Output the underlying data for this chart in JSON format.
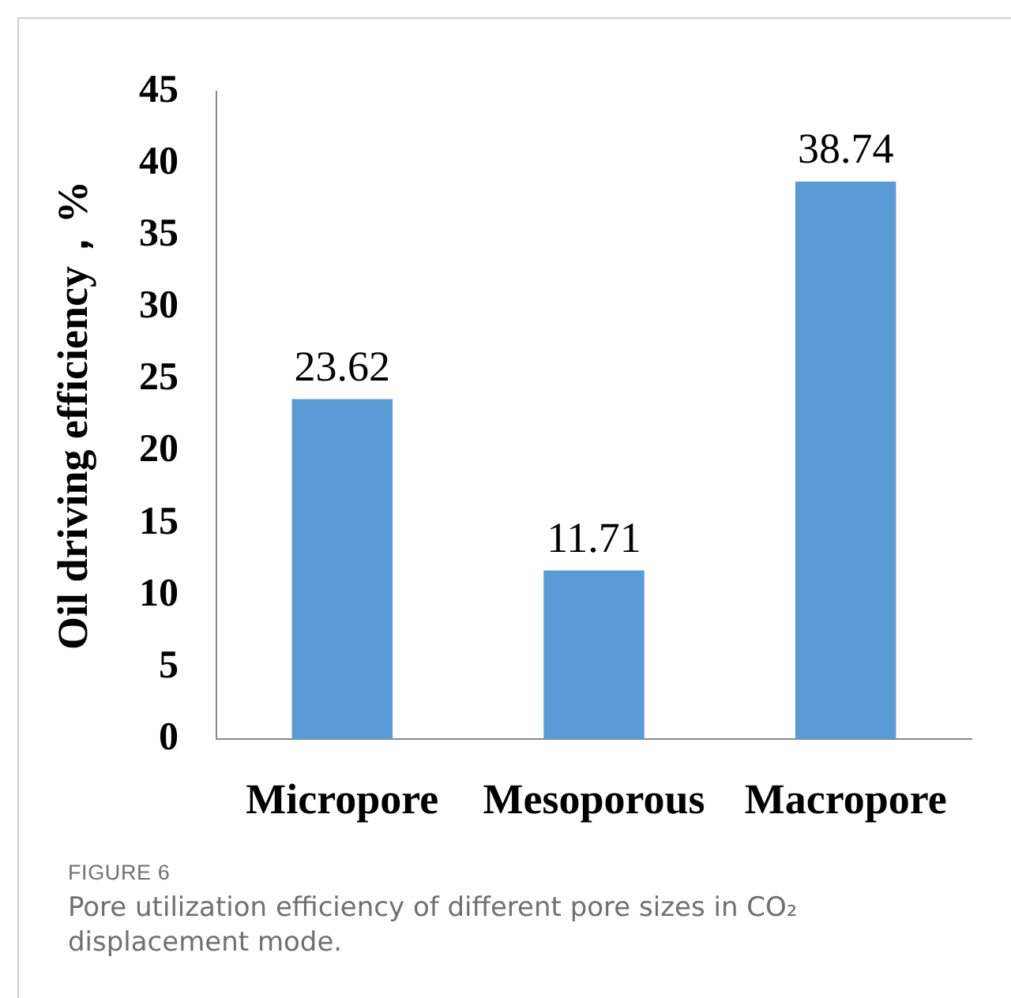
{
  "chart_data": {
    "type": "bar",
    "ylabel": "Oil driving efficiency，%",
    "categories": [
      "Micropore",
      "Mesoporous",
      "Macropore"
    ],
    "values": [
      23.62,
      11.71,
      38.74
    ],
    "color": "#5b9bd5",
    "ylim": [
      0,
      45
    ],
    "yticks": [
      0,
      5,
      10,
      15,
      20,
      25,
      30,
      35,
      40,
      45
    ],
    "data_labels": true,
    "annotations": [
      "FIGURE 6",
      "Pore utilization efficiency of different pore sizes in CO₂ displacement mode."
    ]
  }
}
